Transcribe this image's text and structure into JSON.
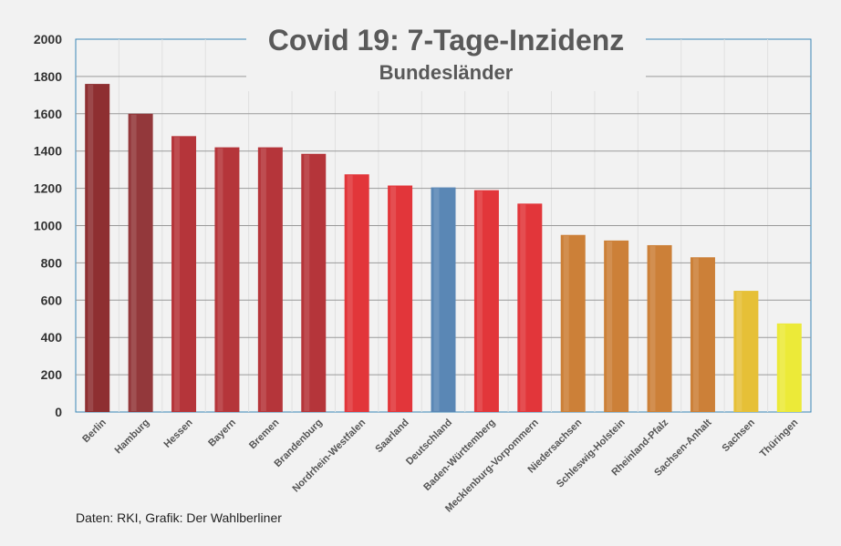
{
  "chart_data": {
    "type": "bar",
    "title": "Covid 19: 7-Tage-Inzidenz",
    "subtitle": "Bundesländer",
    "categories": [
      "Berlin",
      "Hamburg",
      "Hessen",
      "Bayern",
      "Bremen",
      "Brandenburg",
      "Nordrhein-Westfalen",
      "Saarland",
      "Deutschland",
      "Baden-Württemberg",
      "Mecklenburg-Vorpommern",
      "Niedersachsen",
      "Schleswig-Holstein",
      "Rheinland-Pfalz",
      "Sachsen-Anhalt",
      "Sachsen",
      "Thüringen"
    ],
    "values": [
      1760,
      1600,
      1480,
      1420,
      1420,
      1385,
      1275,
      1215,
      1205,
      1190,
      1118,
      950,
      920,
      895,
      830,
      650,
      475
    ],
    "colors": [
      "#8e2f31",
      "#93383b",
      "#b5353a",
      "#b5353a",
      "#b5353a",
      "#b5353a",
      "#e2363a",
      "#e2363a",
      "#5a87b5",
      "#e2363a",
      "#e2363a",
      "#cc8038",
      "#cc8038",
      "#cc8038",
      "#cc8038",
      "#e6c037",
      "#ecea38"
    ],
    "ylim": [
      0,
      2000
    ],
    "yticks": [
      0,
      200,
      400,
      600,
      800,
      1000,
      1200,
      1400,
      1600,
      1800,
      2000
    ],
    "xlabel": "",
    "ylabel": "",
    "grid": true,
    "legend": "none"
  },
  "source_note": "Daten: RKI, Grafik: Der Wahlberliner"
}
